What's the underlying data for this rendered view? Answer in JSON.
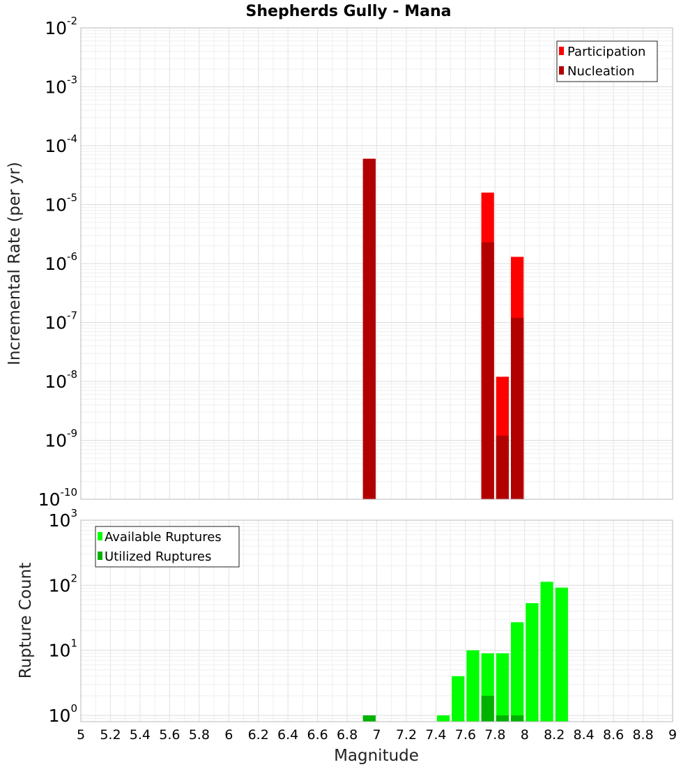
{
  "chart_data": [
    {
      "type": "bar",
      "title": "Shepherds Gully - Mana",
      "ylabel": "Incremental Rate (per yr)",
      "xlabel": "",
      "yscale": "log",
      "ylim": [
        1e-10,
        0.01
      ],
      "xlim": [
        5,
        9
      ],
      "legend_position": "top-right",
      "y_ticks": [
        {
          "base": "10",
          "exp": "-2"
        },
        {
          "base": "10",
          "exp": "-3"
        },
        {
          "base": "10",
          "exp": "-4"
        },
        {
          "base": "10",
          "exp": "-5"
        },
        {
          "base": "10",
          "exp": "-6"
        },
        {
          "base": "10",
          "exp": "-7"
        },
        {
          "base": "10",
          "exp": "-8"
        },
        {
          "base": "10",
          "exp": "-9"
        },
        {
          "base": "10",
          "exp": "-10"
        }
      ],
      "series": [
        {
          "name": "Participation",
          "color": "#ff0000",
          "points": [
            [
              6.95,
              6e-05
            ],
            [
              7.75,
              1.6e-05
            ],
            [
              7.85,
              1.2e-08
            ],
            [
              7.95,
              1.3e-06
            ]
          ]
        },
        {
          "name": "Nucleation",
          "color": "#b20000",
          "points": [
            [
              6.95,
              6e-05
            ],
            [
              7.75,
              2.3e-06
            ],
            [
              7.85,
              1.2e-09
            ],
            [
              7.95,
              1.2e-07
            ]
          ]
        }
      ]
    },
    {
      "type": "bar",
      "title": "",
      "ylabel": "Rupture Count",
      "xlabel": "Magnitude",
      "yscale": "log",
      "ylim": [
        0.8,
        1000
      ],
      "xlim": [
        5,
        9
      ],
      "legend_position": "top-left",
      "y_ticks": [
        {
          "base": "10",
          "exp": "3"
        },
        {
          "base": "10",
          "exp": "2"
        },
        {
          "base": "10",
          "exp": "1"
        },
        {
          "base": "10",
          "exp": "0"
        }
      ],
      "x_ticks": [
        "5",
        "5.2",
        "5.4",
        "5.6",
        "5.8",
        "6",
        "6.2",
        "6.4",
        "6.6",
        "6.8",
        "7",
        "7.2",
        "7.4",
        "7.6",
        "7.8",
        "8",
        "8.2",
        "8.4",
        "8.6",
        "8.8",
        "9"
      ],
      "series": [
        {
          "name": "Available Ruptures",
          "color": "#00ff00",
          "points": [
            [
              6.95,
              1
            ],
            [
              7.45,
              1
            ],
            [
              7.55,
              4
            ],
            [
              7.65,
              10
            ],
            [
              7.75,
              9
            ],
            [
              7.85,
              9
            ],
            [
              7.95,
              27
            ],
            [
              8.05,
              53
            ],
            [
              8.15,
              113
            ],
            [
              8.25,
              92
            ]
          ]
        },
        {
          "name": "Utilized Ruptures",
          "color": "#00b200",
          "points": [
            [
              6.95,
              1
            ],
            [
              7.75,
              2
            ],
            [
              7.85,
              1
            ],
            [
              7.95,
              1
            ]
          ]
        }
      ]
    }
  ]
}
